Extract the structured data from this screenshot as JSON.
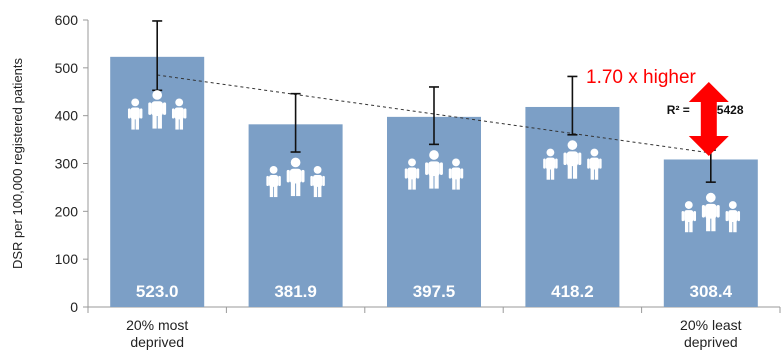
{
  "chart_data": {
    "type": "bar",
    "ylabel": "DSR per 100,000 registered patients",
    "ylim": [
      0,
      600
    ],
    "yticks": [
      0,
      100,
      200,
      300,
      400,
      500,
      600
    ],
    "categories": [
      "20% most deprived",
      "",
      "",
      "",
      "20% least deprived"
    ],
    "category_lines": [
      [
        "20% most",
        "deprived"
      ],
      [],
      [],
      [],
      [
        "20% least",
        "deprived"
      ]
    ],
    "values": [
      523.0,
      381.9,
      397.5,
      418.2,
      308.4
    ],
    "value_labels": [
      "523.0",
      "381.9",
      "397.5",
      "418.2",
      "308.4"
    ],
    "error_upper": [
      598,
      446,
      460,
      482,
      328
    ],
    "error_lower": [
      453,
      324,
      340,
      360,
      261
    ],
    "trendline": {
      "start": 485,
      "end": 322,
      "r2_label_visible": "R² = ",
      "r2_label_tail": "5428"
    },
    "annotation": "1.70 x higher",
    "bar_color": "#7c9fc6",
    "annotation_color": "#ff0000",
    "icon": "people-group-icon"
  }
}
